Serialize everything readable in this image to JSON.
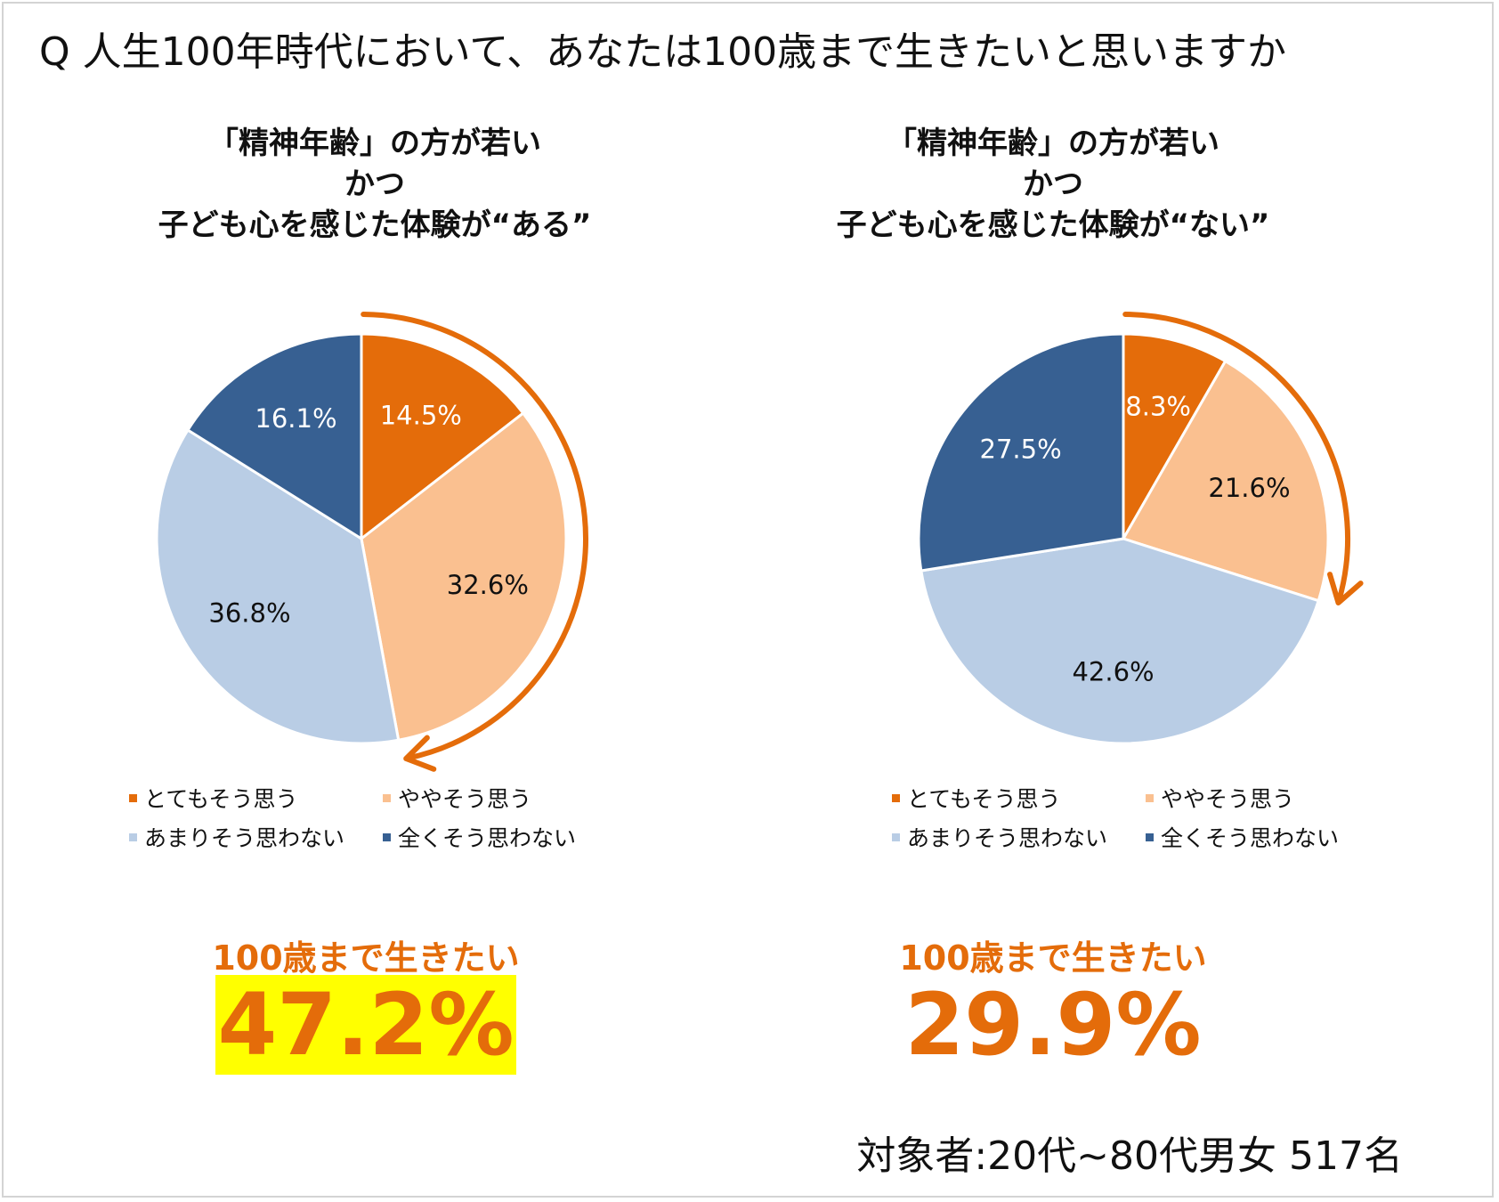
{
  "title": "Q 人生100年時代において、あなたは100歳まで生きたいと思いますか",
  "footer": "対象者:20代~80代男女 517名",
  "legend_labels": [
    "とてもそう思う",
    "ややそう思う",
    "あまりそう思わない",
    "全くそう思わない"
  ],
  "colors": {
    "very_much": "#e46c0a",
    "somewhat": "#fac090",
    "not_really": "#b9cde5",
    "not_at_all": "#376092",
    "accent": "#e46c0a",
    "highlight": "#ffff00"
  },
  "chart_data": [
    {
      "type": "pie",
      "title": [
        "「精神年齢」の方が若い",
        "かつ",
        "子ども心を感じた体験が“ある”"
      ],
      "categories": [
        "とてもそう思う",
        "ややそう思う",
        "あまりそう思わない",
        "全くそう思わない"
      ],
      "values": [
        14.5,
        32.6,
        36.8,
        16.1
      ],
      "labels": [
        "14.5%",
        "32.6%",
        "36.8%",
        "16.1%"
      ],
      "legend": "bottom",
      "callout_label": "100歳まで生きたい",
      "callout_value": "47.2%",
      "callout_highlighted": true
    },
    {
      "type": "pie",
      "title": [
        "「精神年齢」の方が若い",
        "かつ",
        "子ども心を感じた体験が“ない”"
      ],
      "categories": [
        "とてもそう思う",
        "ややそう思う",
        "あまりそう思わない",
        "全くそう思わない"
      ],
      "values": [
        8.3,
        21.6,
        42.6,
        27.5
      ],
      "labels": [
        "8.3%",
        "21.6%",
        "42.6%",
        "27.5%"
      ],
      "legend": "bottom",
      "callout_label": "100歳まで生きたい",
      "callout_value": "29.9%",
      "callout_highlighted": false
    }
  ]
}
